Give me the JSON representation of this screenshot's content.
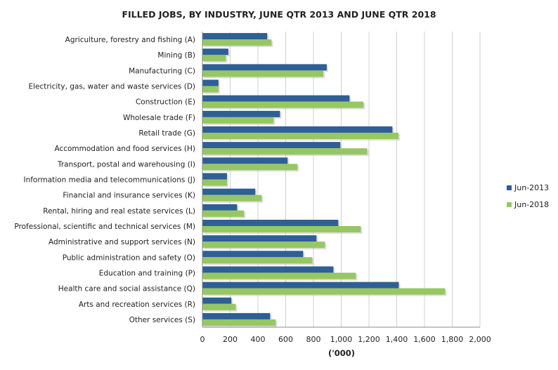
{
  "chart_data": {
    "type": "bar",
    "orientation": "horizontal",
    "title": "FILLED JOBS, BY INDUSTRY, JUNE QTR 2013 AND JUNE QTR 2018",
    "xlabel": "('000)",
    "ylabel": "",
    "xlim": [
      0,
      2000
    ],
    "xticks": [
      "0",
      "200",
      "400",
      "600",
      "800",
      "1,000",
      "1,200",
      "1,400",
      "1,600",
      "1,800",
      "2,000"
    ],
    "grid": true,
    "legend_position": "right",
    "categories": [
      "Agriculture, forestry and fishing (A)",
      "Mining (B)",
      "Manufacturing (C)",
      "Electricity, gas, water and waste services (D)",
      "Construction (E)",
      "Wholesale trade (F)",
      "Retail trade (G)",
      "Accommodation and food services (H)",
      "Transport, postal and warehousing (I)",
      "Information media and telecommunications (J)",
      "Financial and insurance services (K)",
      "Rental, hiring and real estate services (L)",
      "Professional, scientific and technical services (M)",
      "Administrative and support services (N)",
      "Public administration and safety (O)",
      "Education and training (P)",
      "Health care and social assistance (Q)",
      "Arts and recreation services (R)",
      "Other services (S)"
    ],
    "series": [
      {
        "name": "Jun-2013",
        "color": "#2e5f95",
        "values": [
          467,
          187,
          896,
          116,
          1060,
          559,
          1369,
          994,
          614,
          177,
          381,
          250,
          979,
          822,
          726,
          944,
          1415,
          209,
          488
        ]
      },
      {
        "name": "Jun-2018",
        "color": "#96c762",
        "values": [
          498,
          169,
          871,
          116,
          1161,
          513,
          1413,
          1187,
          685,
          177,
          427,
          300,
          1141,
          883,
          792,
          1106,
          1749,
          240,
          528
        ]
      }
    ]
  }
}
